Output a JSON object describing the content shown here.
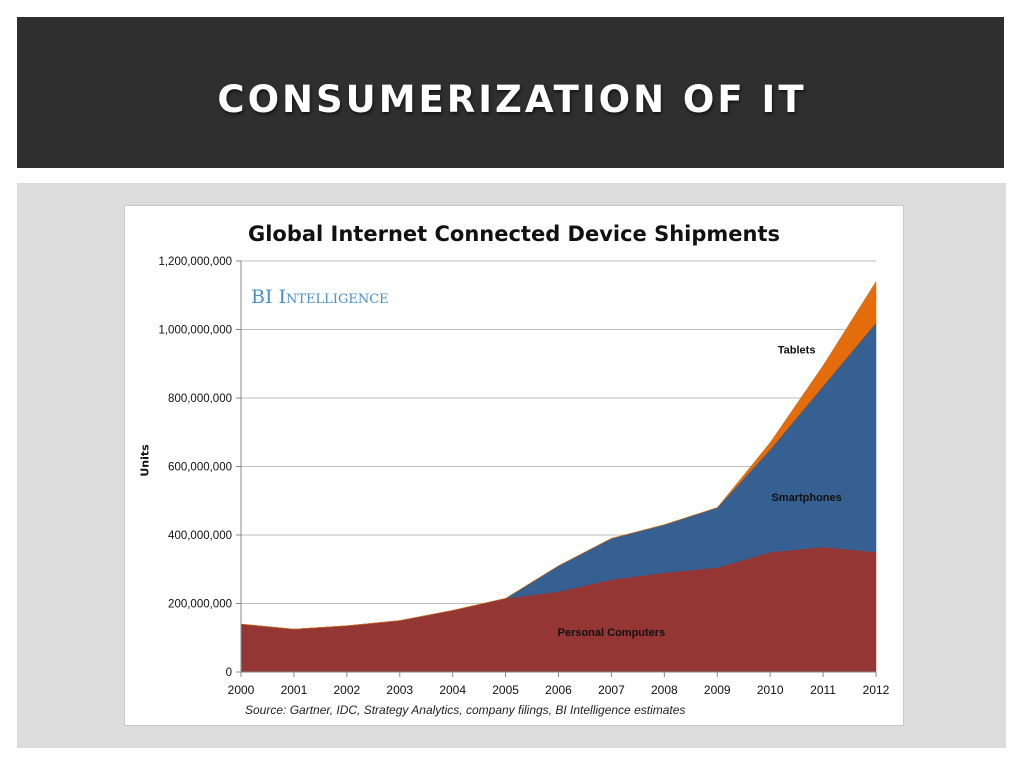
{
  "slide": {
    "title": "CONSUMERIZATION OF IT"
  },
  "chart_data": {
    "type": "area",
    "stacked": true,
    "title": "Global Internet Connected Device Shipments",
    "brand": "BI Intelligence",
    "ylabel": "Units",
    "xlabel": "",
    "source": "Source: Gartner, IDC, Strategy Analytics, company filings, BI Intelligence estimates",
    "x": [
      "2000",
      "2001",
      "2002",
      "2003",
      "2004",
      "2005",
      "2006",
      "2007",
      "2008",
      "2009",
      "2010",
      "2011",
      "2012"
    ],
    "ylim": [
      0,
      1200000000
    ],
    "yticks": [
      0,
      200000000,
      400000000,
      600000000,
      800000000,
      1000000000,
      1200000000
    ],
    "ytick_labels": [
      "0",
      "200,000,000",
      "400,000,000",
      "600,000,000",
      "800,000,000",
      "1,000,000,000",
      "1,200,000,000"
    ],
    "grid": true,
    "series": [
      {
        "name": "Personal Computers",
        "color": "#943634",
        "values": [
          140000000,
          125000000,
          135000000,
          150000000,
          180000000,
          215000000,
          235000000,
          270000000,
          290000000,
          305000000,
          350000000,
          365000000,
          350000000
        ]
      },
      {
        "name": "Smartphones",
        "color": "#376092",
        "values": [
          0,
          0,
          0,
          0,
          0,
          0,
          75000000,
          120000000,
          140000000,
          175000000,
          300000000,
          470000000,
          670000000
        ]
      },
      {
        "name": "Tablets",
        "color": "#e46c0a",
        "values": [
          0,
          0,
          0,
          0,
          0,
          0,
          0,
          0,
          0,
          0,
          20000000,
          60000000,
          120000000
        ]
      }
    ],
    "series_label_positions": [
      "bottom-center",
      "right",
      "top-right"
    ]
  }
}
